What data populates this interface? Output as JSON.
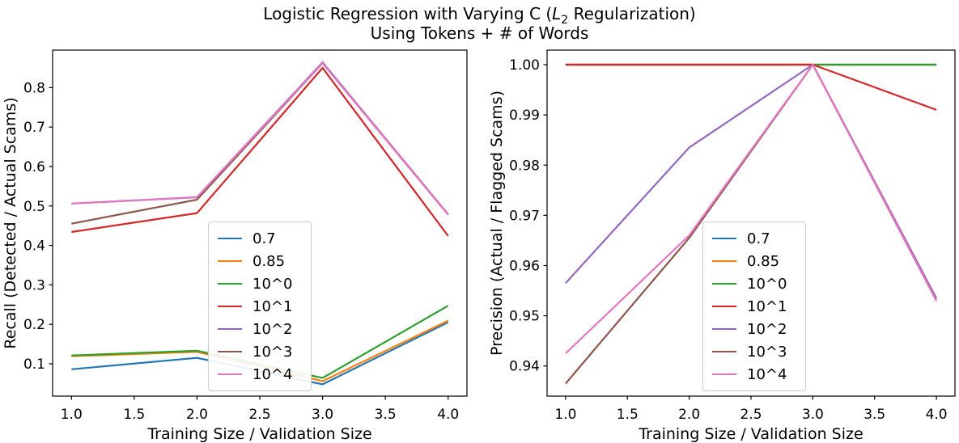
{
  "figure": {
    "title": {
      "prefix": "Logistic Regression with Varying C (",
      "math_var": "L",
      "math_sub": "2",
      "suffix": " Regularization)"
    },
    "subtitle": "Using Tokens + # of Words"
  },
  "chart_data": [
    {
      "type": "line",
      "name": "recall",
      "title": "",
      "xlabel": "Training Size / Validation Size",
      "ylabel": "Recall (Detected / Actual Scams)",
      "x": [
        1,
        2,
        3,
        4
      ],
      "xlim": [
        0.85,
        4.15
      ],
      "ylim": [
        0.018,
        0.895
      ],
      "xticks": {
        "values": [
          1.0,
          1.5,
          2.0,
          2.5,
          3.0,
          3.5,
          4.0
        ],
        "decimals": 1
      },
      "yticks": {
        "values": [
          0.1,
          0.2,
          0.3,
          0.4,
          0.5,
          0.6,
          0.7,
          0.8
        ],
        "decimals": 1
      },
      "grid": false,
      "legend_position": "lower center",
      "series": [
        {
          "name": "0.7",
          "color": "#1f77b4",
          "values": [
            0.086,
            0.115,
            0.048,
            0.205
          ]
        },
        {
          "name": "0.85",
          "color": "#ff7f0e",
          "values": [
            0.119,
            0.13,
            0.056,
            0.209
          ]
        },
        {
          "name": "10^0",
          "color": "#2ca02c",
          "values": [
            0.121,
            0.133,
            0.064,
            0.247
          ]
        },
        {
          "name": "10^1",
          "color": "#d62728",
          "values": [
            0.434,
            0.482,
            0.85,
            0.424
          ]
        },
        {
          "name": "10^2",
          "color": "#9467bd",
          "values": [
            0.506,
            0.522,
            0.864,
            0.479
          ]
        },
        {
          "name": "10^3",
          "color": "#8c564b",
          "values": [
            0.455,
            0.516,
            0.862,
            0.478
          ]
        },
        {
          "name": "10^4",
          "color": "#e377c2",
          "values": [
            0.506,
            0.522,
            0.862,
            0.478
          ]
        }
      ]
    },
    {
      "type": "line",
      "name": "precision",
      "title": "",
      "xlabel": "Training Size / Validation Size",
      "ylabel": "Precision (Actual / Flagged Scams)",
      "x": [
        1,
        2,
        3,
        4
      ],
      "xlim": [
        0.85,
        4.15
      ],
      "ylim": [
        0.934,
        1.0029
      ],
      "xticks": {
        "values": [
          1.0,
          1.5,
          2.0,
          2.5,
          3.0,
          3.5,
          4.0
        ],
        "decimals": 1
      },
      "yticks": {
        "values": [
          0.94,
          0.95,
          0.96,
          0.97,
          0.98,
          0.99,
          1.0
        ],
        "decimals": 2
      },
      "grid": false,
      "legend_position": "lower center",
      "series": [
        {
          "name": "0.7",
          "color": "#1f77b4",
          "values": [
            1.0,
            1.0,
            1.0,
            1.0
          ]
        },
        {
          "name": "0.85",
          "color": "#ff7f0e",
          "values": [
            1.0,
            1.0,
            1.0,
            1.0
          ]
        },
        {
          "name": "10^0",
          "color": "#2ca02c",
          "values": [
            1.0,
            1.0,
            1.0,
            1.0
          ]
        },
        {
          "name": "10^1",
          "color": "#d62728",
          "values": [
            1.0,
            1.0,
            1.0,
            0.991
          ]
        },
        {
          "name": "10^2",
          "color": "#9467bd",
          "values": [
            0.9565,
            0.9835,
            1.0,
            0.9535
          ]
        },
        {
          "name": "10^3",
          "color": "#8c564b",
          "values": [
            0.9365,
            0.9655,
            1.0,
            0.953
          ]
        },
        {
          "name": "10^4",
          "color": "#e377c2",
          "values": [
            0.9425,
            0.966,
            1.0,
            0.953
          ]
        }
      ]
    }
  ]
}
